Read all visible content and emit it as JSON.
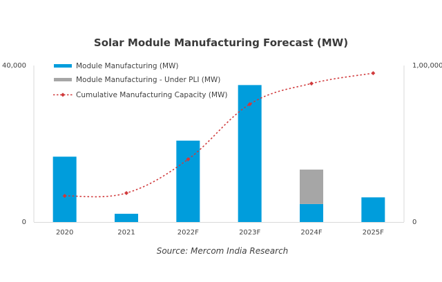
{
  "chart_data": {
    "type": "bar",
    "title": "Solar Module Manufacturing Forecast (MW)",
    "source": "Source: Mercom India Research",
    "categories": [
      "2020",
      "2021",
      "2022F",
      "2023F",
      "2024F",
      "2025F"
    ],
    "series": [
      {
        "name": "Module Manufacturing (MW)",
        "type": "bar",
        "axis": "left",
        "stack": "modules",
        "color": "#009ddc",
        "values": [
          16700,
          2100,
          20800,
          35000,
          4600,
          6300
        ]
      },
      {
        "name": "Module Manufacturing - Under PLI (MW)",
        "type": "bar",
        "axis": "left",
        "stack": "modules",
        "color": "#a6a6a6",
        "values": [
          0,
          0,
          0,
          0,
          8800,
          0
        ]
      },
      {
        "name": "Cumulative Manufacturing Capacity (MW)",
        "type": "line",
        "axis": "right",
        "style": "dashed-with-diamond-markers",
        "color": "#d0393b",
        "values": [
          16700,
          18500,
          40100,
          75300,
          88500,
          95100
        ]
      }
    ],
    "left_axis": {
      "ylim": [
        0,
        40000
      ],
      "tick_labels": [
        "0",
        "40,000"
      ]
    },
    "right_axis": {
      "ylim": [
        0,
        100000
      ],
      "tick_labels": [
        "0",
        "1,00,000"
      ]
    },
    "xlabel": "",
    "ylabel": "",
    "grid": false,
    "legend_position": "top-left"
  }
}
